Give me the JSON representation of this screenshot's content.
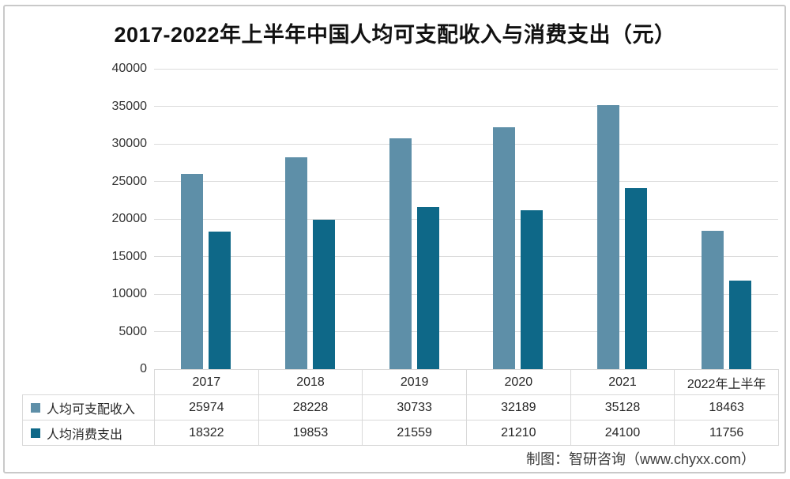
{
  "title": "2017-2022年上半年中国人均可支配收入与消费支出（元）",
  "footer": "制图：智研咨询（www.chyxx.com）",
  "colors": {
    "income_series": "#5E8FA8",
    "expense_series": "#0E6888",
    "gridline": "#dcdcdc",
    "table_border": "#d9d9d9",
    "frame_border": "#c9c9c9",
    "title_text": "#111111",
    "axis_text": "#333333",
    "table_text": "#262626",
    "footer_text": "#3d3d3d"
  },
  "chart_data": {
    "type": "bar",
    "title": "2017-2022年上半年中国人均可支配收入与消费支出（元）",
    "categories": [
      "2017",
      "2018",
      "2019",
      "2020",
      "2021",
      "2022年上半年"
    ],
    "series": [
      {
        "name": "人均可支配收入",
        "color": "#5E8FA8",
        "values": [
          25974,
          28228,
          30733,
          32189,
          35128,
          18463
        ]
      },
      {
        "name": "人均消费支出",
        "color": "#0E6888",
        "values": [
          18322,
          19853,
          21559,
          21210,
          24100,
          11756
        ]
      }
    ],
    "xlabel": "",
    "ylabel": "",
    "ylim": [
      0,
      40000
    ],
    "ytick_step": 5000,
    "ytick_labels": [
      "0",
      "5000",
      "10000",
      "15000",
      "20000",
      "25000",
      "30000",
      "35000",
      "40000"
    ],
    "grid": true,
    "legend_position": "table-left",
    "data_table_shown": true
  }
}
